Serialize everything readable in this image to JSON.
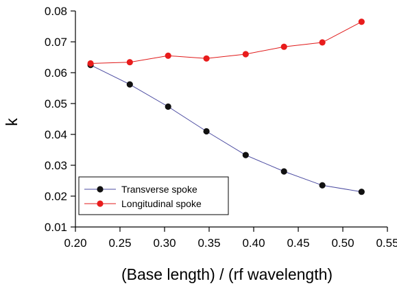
{
  "chart_data": {
    "type": "line",
    "title": "",
    "xlabel": "(Base length) / (rf wavelength)",
    "ylabel": "k",
    "xlim": [
      0.2,
      0.55
    ],
    "ylim": [
      0.01,
      0.08
    ],
    "x_ticks": [
      "0.20",
      "0.25",
      "0.30",
      "0.35",
      "0.40",
      "0.45",
      "0.50",
      "0.55"
    ],
    "y_ticks": [
      "0.01",
      "0.02",
      "0.03",
      "0.04",
      "0.05",
      "0.06",
      "0.07",
      "0.08"
    ],
    "grid": false,
    "legend_position": "bottom-left",
    "series": [
      {
        "name": "Transverse spoke",
        "line_color": "#4a4aa0",
        "marker_color": "#111111",
        "x": [
          0.217,
          0.261,
          0.304,
          0.347,
          0.391,
          0.434,
          0.477,
          0.521
        ],
        "y": [
          0.0625,
          0.0562,
          0.049,
          0.041,
          0.0333,
          0.028,
          0.0235,
          0.0214
        ]
      },
      {
        "name": "Longitudinal spoke",
        "line_color": "#e01818",
        "marker_color": "#e81c1c",
        "x": [
          0.217,
          0.261,
          0.304,
          0.347,
          0.391,
          0.434,
          0.477,
          0.521
        ],
        "y": [
          0.063,
          0.0634,
          0.0655,
          0.0646,
          0.066,
          0.0684,
          0.0698,
          0.0765
        ]
      }
    ]
  }
}
